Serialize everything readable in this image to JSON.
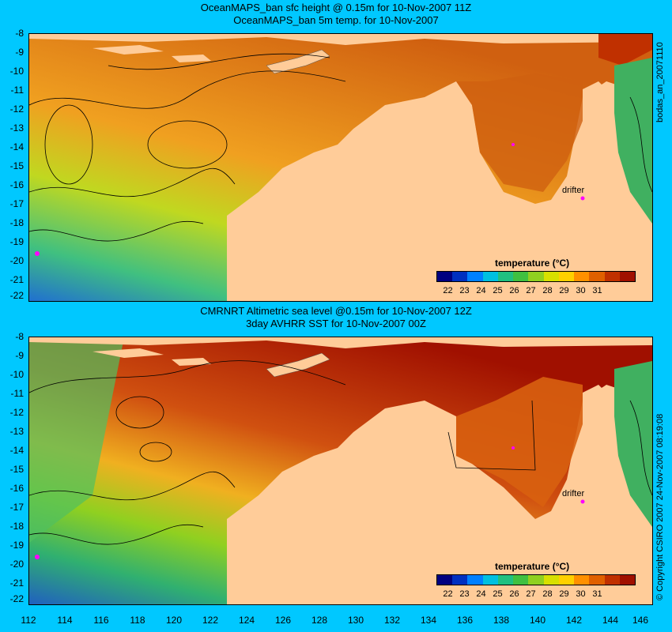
{
  "panels": [
    {
      "title_line1": "OceanMAPS_ban sfc height @ 0.15m for 10-Nov-2007 11Z",
      "title_line2": "OceanMAPS_ban 5m temp. for 10-Nov-2007",
      "legend_title": "temperature (°C)",
      "drifter_label": "drifter"
    },
    {
      "title_line1": "CMRNRT Altimetric sea level  @0.15m  for 10-Nov-2007 12Z",
      "title_line2": "3day AVHRR SST for 10-Nov-2007 00Z",
      "legend_title": "temperature (°C)",
      "drifter_label": "drifter"
    }
  ],
  "lat_labels": [
    "-8",
    "-9",
    "-10",
    "-11",
    "-12",
    "-13",
    "-14",
    "-15",
    "-16",
    "-17",
    "-18",
    "-19",
    "-20",
    "-21",
    "-22"
  ],
  "lon_labels": [
    "112",
    "114",
    "116",
    "118",
    "120",
    "122",
    "124",
    "126",
    "128",
    "130",
    "132",
    "134",
    "136",
    "138",
    "140",
    "142",
    "144",
    "146"
  ],
  "colorbar_ticks": [
    "22",
    "23",
    "24",
    "25",
    "26",
    "27",
    "28",
    "29",
    "30",
    "31"
  ],
  "colorbar_colors": [
    "#000080",
    "#0030c0",
    "#0080ff",
    "#00c0e0",
    "#20c080",
    "#40c040",
    "#90d020",
    "#d8e000",
    "#ffd000",
    "#ff9000",
    "#e06000",
    "#c03000",
    "#a01000"
  ],
  "side_text_top": "bodas_an_20071110",
  "side_text_bottom": "© Copyright CSIRO 2007    24-Nov-2007 08:19:08"
}
